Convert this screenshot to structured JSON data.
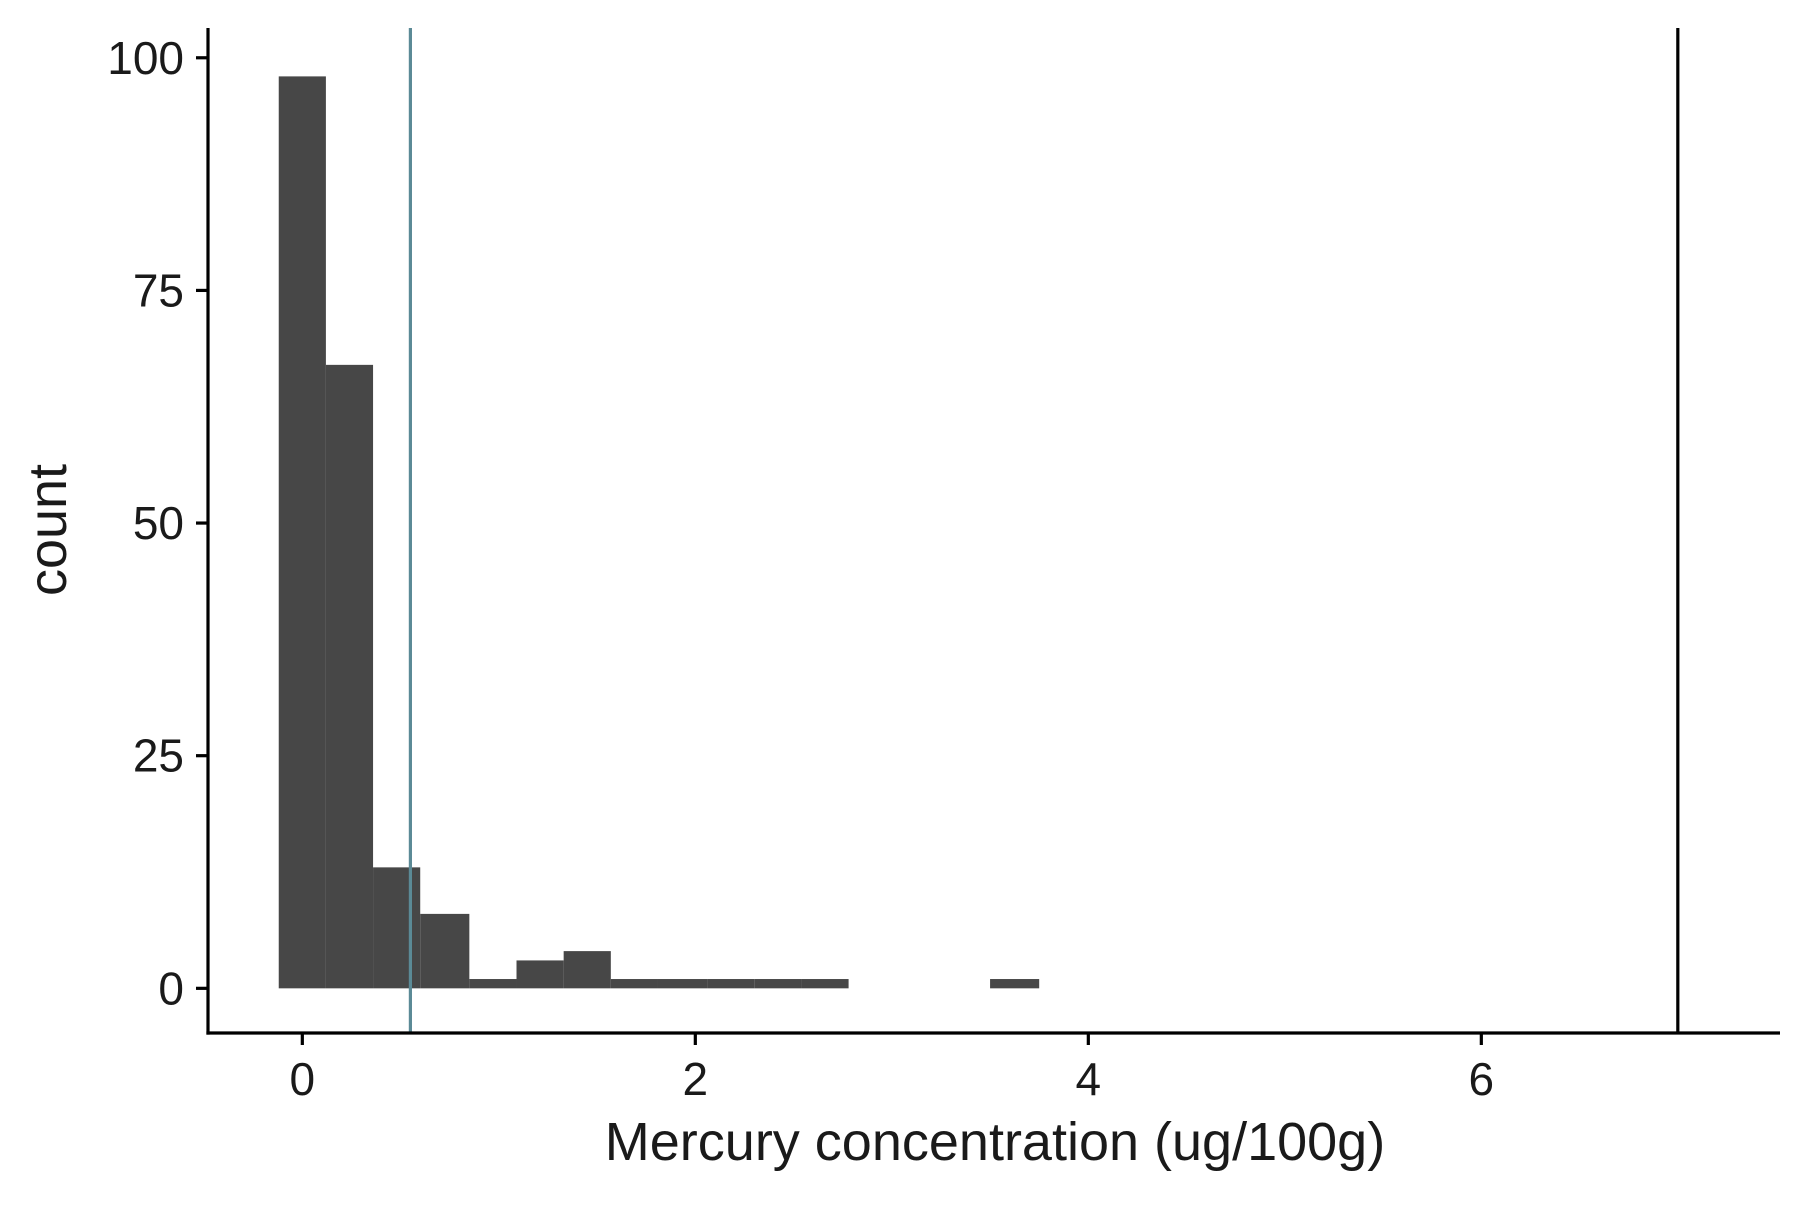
{
  "chart_data": {
    "type": "bar",
    "subtype": "histogram",
    "xlabel": "Mercury concentration (ug/100g)",
    "ylabel": "count",
    "xlim": [
      -0.48,
      7.52
    ],
    "ylim": [
      -4.8,
      103.2
    ],
    "x_ticks": [
      0,
      2,
      4,
      6
    ],
    "y_ticks": [
      0,
      25,
      50,
      75,
      100
    ],
    "grid": false,
    "bar_color": "#474747",
    "bins": [
      {
        "x0": -0.12,
        "x1": 0.12,
        "count": 98
      },
      {
        "x0": 0.12,
        "x1": 0.36,
        "count": 67
      },
      {
        "x0": 0.36,
        "x1": 0.6,
        "count": 13
      },
      {
        "x0": 0.6,
        "x1": 0.85,
        "count": 8
      },
      {
        "x0": 0.85,
        "x1": 1.09,
        "count": 1
      },
      {
        "x0": 1.09,
        "x1": 1.33,
        "count": 3
      },
      {
        "x0": 1.33,
        "x1": 1.57,
        "count": 4
      },
      {
        "x0": 1.57,
        "x1": 1.81,
        "count": 1
      },
      {
        "x0": 1.81,
        "x1": 2.06,
        "count": 1
      },
      {
        "x0": 2.06,
        "x1": 2.3,
        "count": 1
      },
      {
        "x0": 2.3,
        "x1": 2.54,
        "count": 1
      },
      {
        "x0": 2.54,
        "x1": 2.78,
        "count": 1
      },
      {
        "x0": 3.5,
        "x1": 3.75,
        "count": 1
      }
    ],
    "reference_lines": [
      {
        "x": 0.55,
        "color": "#5b8a96"
      },
      {
        "x": 7.0,
        "color": "#000000"
      }
    ]
  }
}
